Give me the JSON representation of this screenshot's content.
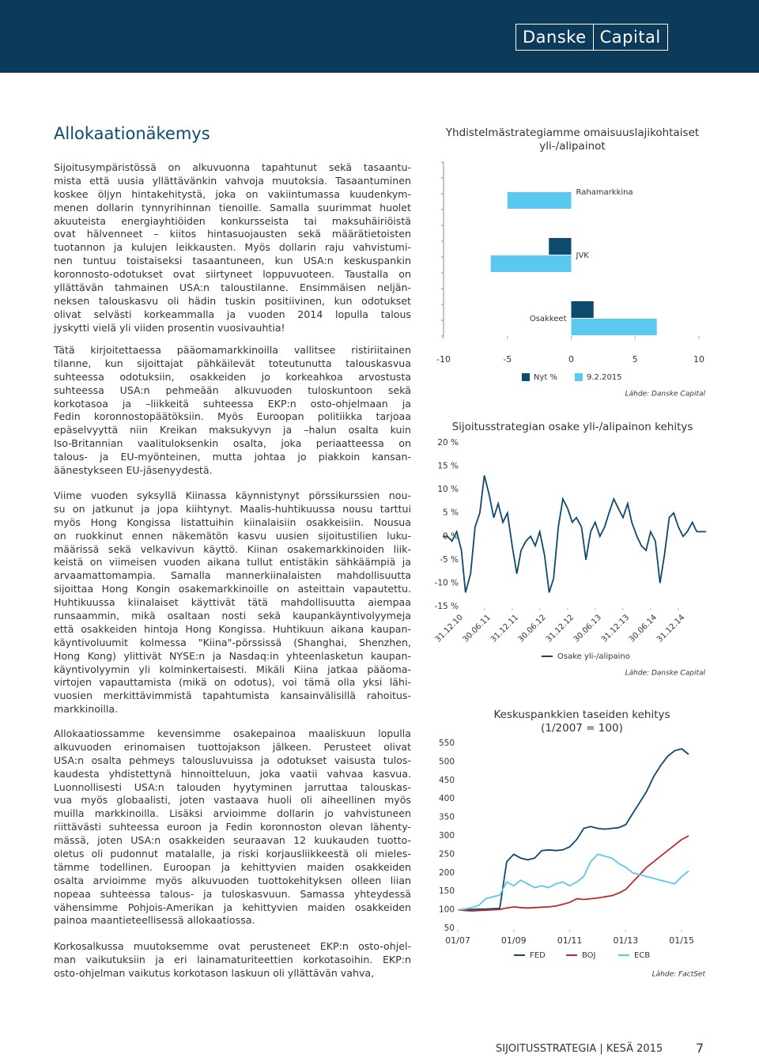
{
  "header": {
    "logo": [
      "Danske",
      "Capital"
    ]
  },
  "article": {
    "title": "Allokaationäkemys",
    "paragraphs": [
      [
        "Sijoitusympäristössä on alkuvuonna tapahtunut sekä tasaantu-",
        "mista että uusia yllättävänkin vahvoja muutoksia. Tasaantuminen",
        "koskee öljyn hintakehitystä, joka on vakiintumassa kuudenkym-",
        "menen dollarin tynnyrihinnan tienoille. Samalla suurimmat huolet",
        "akuuteista energiayhtiöiden konkursseista tai maksuhäiriöistä",
        "ovat hälvenneet – kiitos hintasuojausten sekä määrätietoisten",
        "tuotannon ja kulujen leikkausten. Myös dollarin raju vahvistumi-",
        "nen tuntuu toistaiseksi tasaantuneen, kun USA:n keskuspankin",
        "koronnosto-odotukset ovat siirtyneet loppuvuoteen. Taustalla on",
        "yllättävän tahmainen USA:n taloustilanne. Ensimmäisen neljän-",
        "neksen talouskasvu oli hädin tuskin positiivinen, kun odotukset",
        "olivat selvästi korkeammalla ja vuoden 2014 lopulla talous",
        "jyskytti vielä yli viiden prosentin vuosivauhtia!"
      ],
      [
        "Tätä kirjoitettaessa pääomamarkkinoilla vallitsee ristiriitainen",
        "tilanne, kun sijoittajat pähkäilevät toteutunutta talouskasvua",
        "suhteessa odotuksiin, osakkeiden jo korkeahkoa arvostusta",
        "suhteessa USA:n pehmeään alkuvuoden tuloskuntoon sekä",
        "korkotasoa ja –liikkeitä suhteessa EKP:n osto-ohjelmaan ja",
        "Fedin koronnostopäätöksiin. Myös Euroopan politiikka tarjoaa",
        "epäselvyyttä niin Kreikan maksukyvyn ja –halun osalta kuin",
        "Iso-Britannian vaalituloksenkin osalta, joka periaatteessa on",
        "talous- ja EU-myönteinen, mutta johtaa jo piakkoin kansan-",
        "äänestykseen EU-jäsenyydestä."
      ],
      [
        "Viime vuoden syksyllä Kiinassa käynnistynyt pörssikurssien nou-",
        "su on jatkunut ja jopa kiihtynyt. Maalis-huhtikuussa nousu tarttui",
        "myös Hong Kongissa listattuihin kiinalaisiin osakkeisiin. Nousua",
        "on ruokkinut ennen näkemätön kasvu uusien sijoitustilien luku-",
        "määrissä sekä velkavivun käyttö. Kiinan osakemarkkinoiden liik-",
        "keistä on viimeisen vuoden aikana tullut entistäkin sähkäämpiä ja",
        "arvaamattomampia. Samalla mannerkiinalaisten mahdollisuutta",
        "sijoittaa Hong Kongin osakemarkkinoille on asteittain vapautettu.",
        "Huhtikuussa kiinalaiset käyttivät tätä mahdollisuutta aiempaa",
        "runsaammin, mikä osaltaan nosti sekä kaupankäyntivolyymeja",
        "että osakkeiden hintoja Hong Kongissa. Huhtikuun aikana kaupan-",
        "käyntivoluumit kolmessa \"Kiina\"-pörssissä (Shanghai, Shenzhen,",
        "Hong Kong) ylittivät NYSE:n ja Nasdaq:in yhteenlasketun kaupan-",
        "käyntivolyymin yli kolminkertaisesti. Mikäli Kiina jatkaa pääoma-",
        "virtojen vapauttamista (mikä on odotus), voi tämä olla yksi lähi-",
        "vuosien merkittävimmistä tapahtumista kansainvälisillä rahoitus-",
        "markkinoilla."
      ],
      [
        "Allokaatiossamme kevensimme osakepainoa maaliskuun lopulla",
        "alkuvuoden erinomaisen tuottojakson jälkeen. Perusteet olivat",
        "USA:n osalta pehmeys talousluvuissa ja odotukset vaisusta tulos-",
        "kaudesta yhdistettynä hinnoitteluun, joka vaatii vahvaa kasvua.",
        "Luonnollisesti USA:n talouden hyytyminen jarruttaa talouskas-",
        "vua myös globaalisti, joten vastaava huoli oli aiheellinen myös",
        "muilla markkinoilla. Lisäksi arvioimme dollarin jo vahvistuneen",
        "riittävästi suhteessa euroon ja Fedin koronnoston olevan lähenty-",
        "mässä, joten USA:n osakkeiden seuraavan 12 kuukauden tuotto-",
        "oletus oli pudonnut matalalle, ja riski korjausliikkeestä oli mieles-",
        "tämme todellinen. Euroopan ja kehittyvien maiden osakkeiden",
        "osalta arvioimme myös alkuvuoden tuottokehityksen olleen liian",
        "nopeaa suhteessa talous- ja tuloskasvuun. Samassa yhteydessä",
        "vähensimme Pohjois-Amerikan ja kehittyvien maiden osakkeiden",
        "painoa maantieteellisessä allokaatiossa."
      ],
      [
        "Korkosalkussa muutoksemme ovat perusteneet EKP:n osto-ohjel-",
        "man vaikutuksiin ja eri lainamaturiteettien korkotasoihin. EKP:n",
        "osto-ohjelman vaikutus korkotason laskuun oli yllättävän vahva,"
      ]
    ]
  },
  "chart_data": [
    {
      "type": "hbar",
      "title": [
        "Yhdistelmästrategiamme omaisuuslajikohtaiset",
        "yli-/alipainot"
      ],
      "categories": [
        "Rahamarkkina",
        "JVK",
        "Osakkeet"
      ],
      "series": [
        {
          "name": "Nyt %",
          "color": "#0d4a6b",
          "values": [
            0,
            -1.75,
            1.75
          ]
        },
        {
          "name": "9.2.2015",
          "color": "#5bc8ef",
          "values": [
            -5,
            -6.3,
            6.7
          ]
        }
      ],
      "xlim": [
        -10,
        10
      ],
      "xticks": [
        -10,
        -5,
        0,
        5,
        10
      ],
      "source": "Lähde: Danske Capital"
    },
    {
      "type": "line",
      "title": [
        "Sijoitusstrategian osake yli-/alipainon kehitys"
      ],
      "x": [
        "30.09.10",
        "31.10.10",
        "30.11.10",
        "31.12.10",
        "31.01.11",
        "28.02.11",
        "31.03.11",
        "30.04.11",
        "31.05.11",
        "30.06.11",
        "31.07.11",
        "31.08.11",
        "30.09.11",
        "31.10.11",
        "30.11.11",
        "31.12.11",
        "31.01.12",
        "29.02.12",
        "31.03.12",
        "30.04.12",
        "31.05.12",
        "30.06.12",
        "31.07.12",
        "31.08.12",
        "30.09.12",
        "31.10.12",
        "30.11.12",
        "31.12.12",
        "31.01.13",
        "28.02.13",
        "31.03.13",
        "30.04.13",
        "31.05.13",
        "30.06.13",
        "31.07.13",
        "31.08.13",
        "30.09.13",
        "31.10.13",
        "30.11.13",
        "31.12.13",
        "31.01.14",
        "28.02.14",
        "31.03.14",
        "30.04.14",
        "31.05.14",
        "30.06.14",
        "31.07.14",
        "31.08.14",
        "30.09.14",
        "31.10.14",
        "30.11.14",
        "31.12.14",
        "31.01.15",
        "28.02.15",
        "31.03.15",
        "30.04.15",
        "31.05.15",
        "30.06.15"
      ],
      "series": [
        {
          "name": "Osake yli-/alipaino",
          "color": "#0d4a6b",
          "values": [
            0,
            0,
            -1,
            1,
            -3,
            -12,
            -8,
            2,
            5,
            13,
            9,
            4,
            7,
            3,
            5,
            -2,
            -8,
            -3,
            -1,
            0,
            -2,
            1,
            -4,
            -12,
            -9,
            2,
            8,
            6,
            3,
            4,
            2,
            -5,
            1,
            3,
            0,
            2,
            5,
            8,
            6,
            4,
            7,
            3,
            0,
            -2,
            -3,
            1,
            -1,
            -10,
            -4,
            4,
            5,
            2,
            0,
            1,
            3,
            1,
            1,
            1
          ]
        }
      ],
      "xlim": [
        "30.09.10",
        "30.06.15"
      ],
      "xticks": [
        "31.12.10",
        "30.06.11",
        "31.12.11",
        "30.06.12",
        "31.12.12",
        "30.06.13",
        "31.12.13",
        "30.06.14",
        "31.12.14"
      ],
      "ylim": [
        -15,
        20
      ],
      "yticks": [
        {
          "value": 20,
          "label": "20 %"
        },
        {
          "value": 15,
          "label": "15 %"
        },
        {
          "value": 10,
          "label": "10 %"
        },
        {
          "value": 5,
          "label": "5 %"
        },
        {
          "value": 0,
          "label": "0 %"
        },
        {
          "value": -5,
          "label": "-5 %"
        },
        {
          "value": -10,
          "label": "-10 %"
        },
        {
          "value": -15,
          "label": "-15 %"
        }
      ],
      "source": "Lähde: Danske Capital"
    },
    {
      "type": "line",
      "title": [
        "Keskuspankkien taseiden kehitys",
        "(1/2007 = 100)"
      ],
      "x": [
        "01/07",
        "04/07",
        "07/07",
        "10/07",
        "01/08",
        "04/08",
        "07/08",
        "10/08",
        "01/09",
        "04/09",
        "07/09",
        "10/09",
        "01/10",
        "04/10",
        "07/10",
        "10/10",
        "01/11",
        "04/11",
        "07/11",
        "10/11",
        "01/12",
        "04/12",
        "07/12",
        "10/12",
        "01/13",
        "04/13",
        "07/13",
        "10/13",
        "01/14",
        "04/14",
        "07/14",
        "10/14",
        "01/15",
        "04/15"
      ],
      "series": [
        {
          "name": "FED",
          "color": "#0d4a6b",
          "values": [
            100,
            100,
            101,
            102,
            102,
            103,
            104,
            230,
            250,
            240,
            235,
            240,
            260,
            262,
            260,
            262,
            270,
            290,
            320,
            325,
            320,
            318,
            320,
            322,
            330,
            360,
            390,
            420,
            460,
            490,
            515,
            530,
            535,
            520
          ]
        },
        {
          "name": "BOJ",
          "color": "#c0282d",
          "values": [
            100,
            98,
            97,
            98,
            99,
            100,
            101,
            105,
            108,
            106,
            105,
            106,
            107,
            108,
            110,
            115,
            120,
            130,
            128,
            130,
            132,
            135,
            138,
            145,
            155,
            175,
            195,
            215,
            230,
            245,
            260,
            275,
            290,
            300
          ]
        },
        {
          "name": "ECB",
          "color": "#5bc8ef",
          "values": [
            100,
            102,
            106,
            112,
            130,
            135,
            140,
            175,
            165,
            180,
            170,
            160,
            165,
            160,
            170,
            175,
            165,
            175,
            190,
            230,
            250,
            245,
            240,
            225,
            215,
            200,
            195,
            190,
            185,
            180,
            175,
            170,
            190,
            205
          ]
        }
      ],
      "xlim": [
        "01/07",
        "04/15"
      ],
      "xticks": [
        "01/07",
        "01/09",
        "01/11",
        "01/13",
        "01/15"
      ],
      "ylim": [
        50,
        550
      ],
      "yticks": [
        50,
        100,
        150,
        200,
        250,
        300,
        350,
        400,
        450,
        500,
        550
      ],
      "source": "Lähde: FactSet"
    }
  ],
  "footer": {
    "publication": "SIJOITUSSTRATEGIA",
    "issue": "KESÄ 2015",
    "page": "7"
  }
}
